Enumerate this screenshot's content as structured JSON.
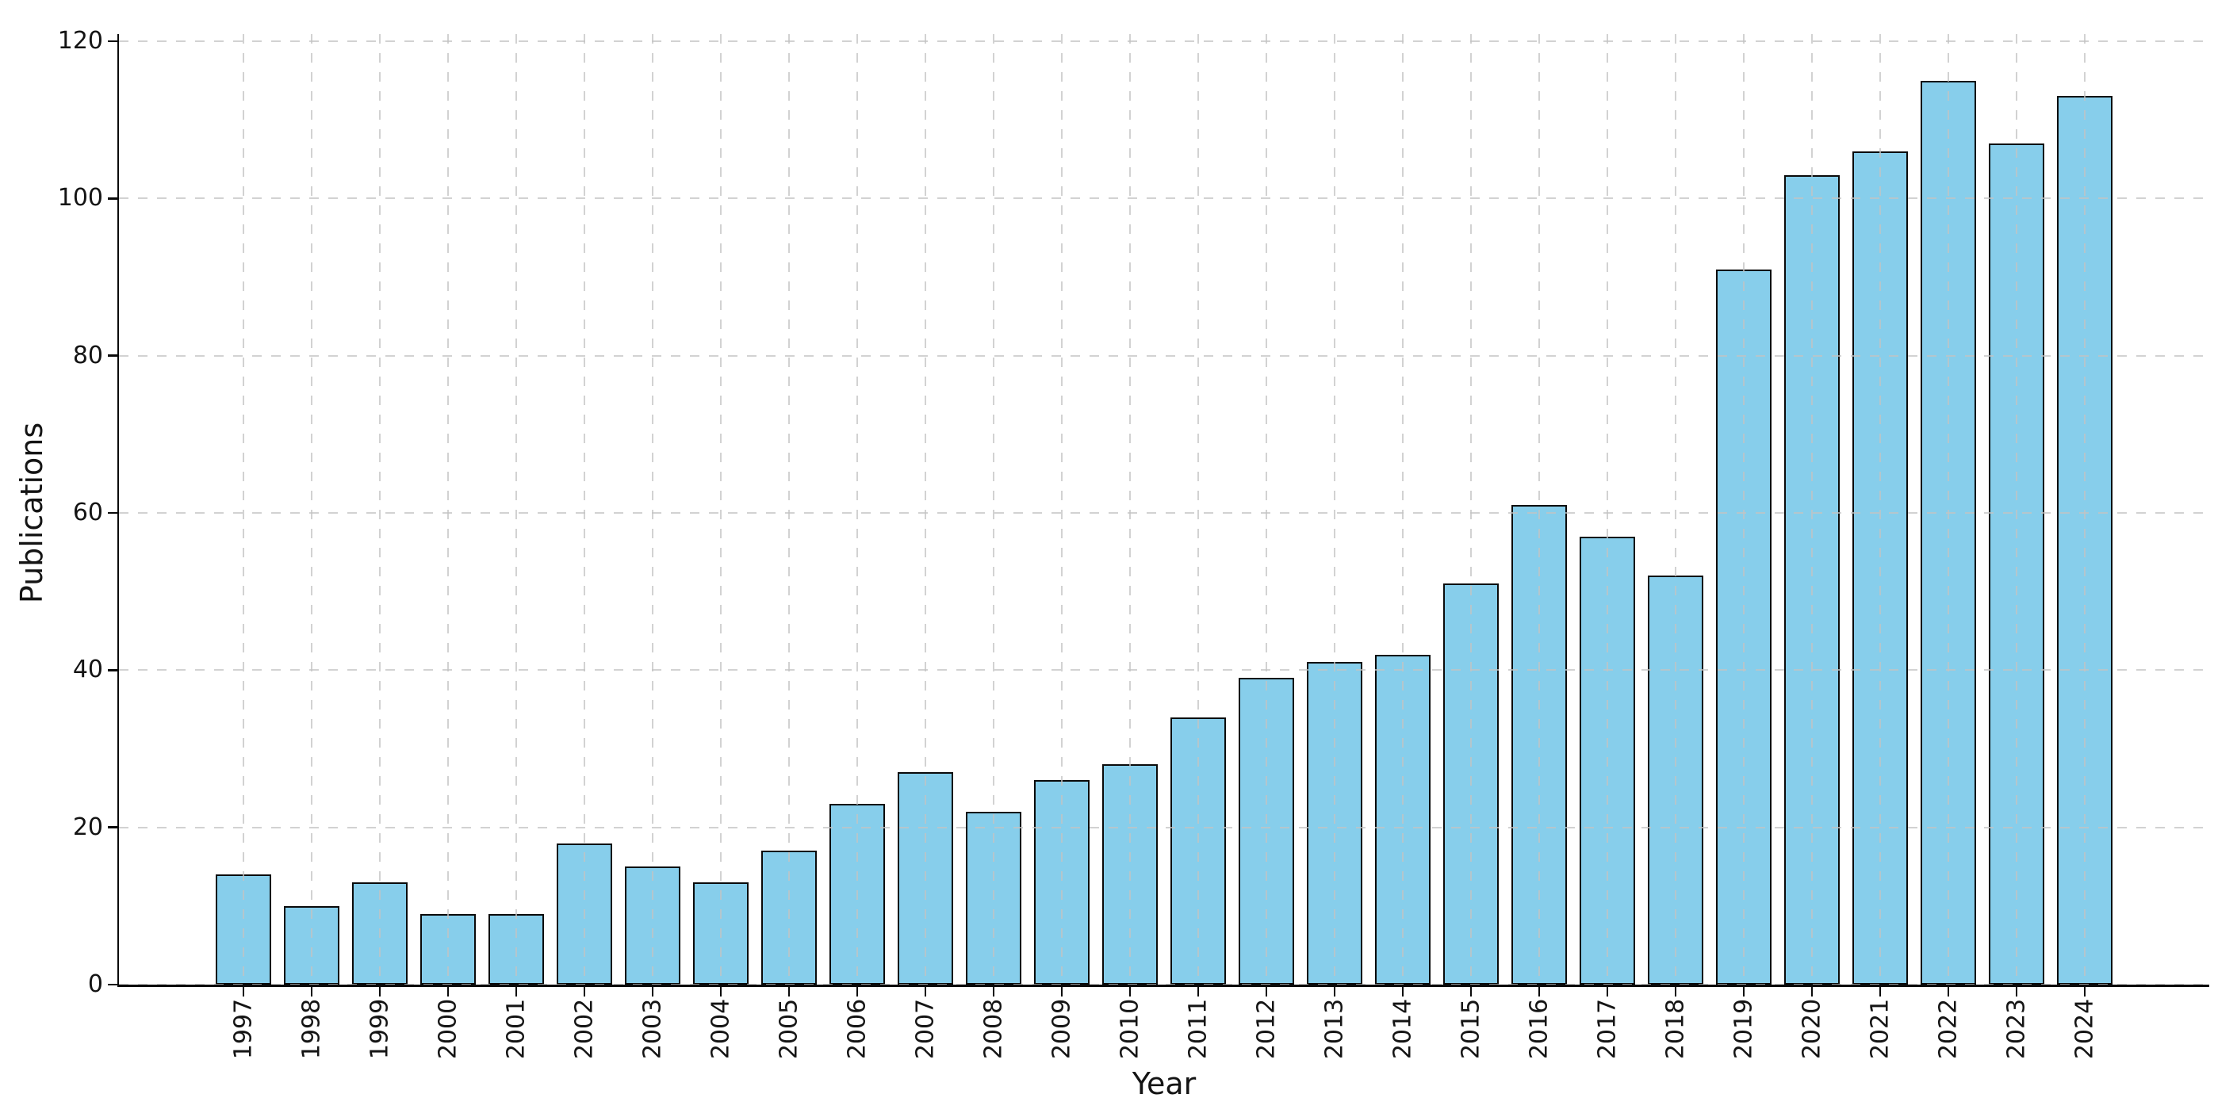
{
  "page": {
    "background": "#ffffff"
  },
  "chart_data": {
    "type": "bar",
    "title": "",
    "xlabel": "Year",
    "ylabel": "Publications",
    "categories": [
      "1997",
      "1998",
      "1999",
      "2000",
      "2001",
      "2002",
      "2003",
      "2004",
      "2005",
      "2006",
      "2007",
      "2008",
      "2009",
      "2010",
      "2011",
      "2012",
      "2013",
      "2014",
      "2015",
      "2016",
      "2017",
      "2018",
      "2019",
      "2020",
      "2021",
      "2022",
      "2023",
      "2024"
    ],
    "values": [
      14,
      10,
      13,
      9,
      9,
      18,
      15,
      13,
      17,
      23,
      27,
      22,
      26,
      28,
      34,
      39,
      41,
      42,
      51,
      61,
      57,
      52,
      91,
      103,
      106,
      115,
      107,
      113
    ],
    "yticks": [
      0,
      20,
      40,
      60,
      80,
      100,
      120
    ],
    "ylim": [
      0,
      121
    ],
    "legend": {
      "show": false
    },
    "grid": {
      "show": true,
      "style": "dashed",
      "axes": "both",
      "above_bars": true
    },
    "colors": {
      "bar_fill": "#87CEEB",
      "bar_edge": "#0a0a0a",
      "grid": "#c3c3c3",
      "axis": "#0a0a0a",
      "text": "#141414"
    }
  }
}
